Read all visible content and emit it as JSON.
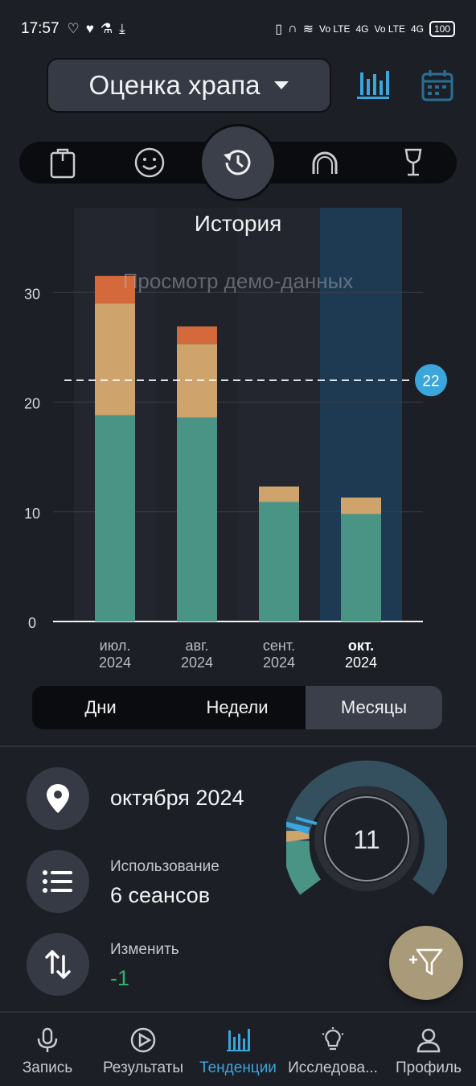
{
  "status": {
    "time": "17:57",
    "battery": "100",
    "net1": "Vo LTE",
    "net2": "4G",
    "net3": "Vo LTE",
    "net4": "4G"
  },
  "header": {
    "title": "Оценка храпа"
  },
  "chart_title": "История",
  "watermark": "Просмотр демо-данных",
  "chart_data": {
    "type": "bar",
    "categories": [
      [
        "июл.",
        "2024"
      ],
      [
        "авг.",
        "2024"
      ],
      [
        "сент.",
        "2024"
      ],
      [
        "окт.",
        "2024"
      ]
    ],
    "series": [
      {
        "color": "#4a9485",
        "values": [
          18.8,
          18.6,
          10.9,
          9.8
        ]
      },
      {
        "color": "#cfa46c",
        "values": [
          10.2,
          6.7,
          1.4,
          1.5
        ]
      },
      {
        "color": "#d46a3b",
        "values": [
          2.5,
          1.6,
          0,
          0
        ]
      }
    ],
    "yticks": [
      0,
      10,
      20,
      30
    ],
    "ylim": [
      0,
      32
    ],
    "reference_line": {
      "value": 22,
      "label": "22"
    },
    "selected_index": 3
  },
  "segment": {
    "days": "Дни",
    "weeks": "Недели",
    "months": "Месяцы"
  },
  "details": {
    "period": "октября 2024",
    "usage_label": "Использование",
    "usage_value": "6 сеансов",
    "change_label": "Изменить",
    "change_value": "-1"
  },
  "gauge": {
    "value": "11"
  },
  "nav": {
    "record": "Запись",
    "results": "Результаты",
    "trends": "Тенденции",
    "research": "Исследова...",
    "profile": "Профиль"
  },
  "colors": {
    "accent": "#3aa6dc",
    "positive": "#2fb36a"
  }
}
